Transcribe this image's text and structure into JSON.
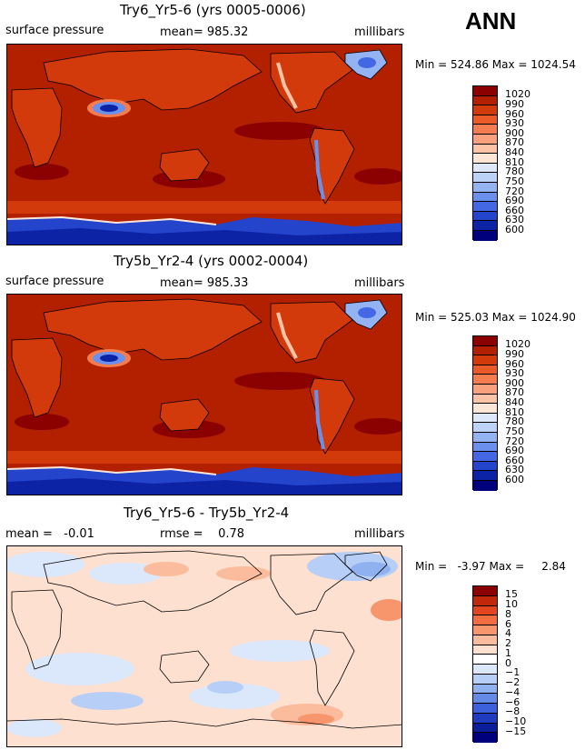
{
  "season": "ANN",
  "panels": [
    {
      "title": "Try6_Yr5-6 (yrs 0005-0006)",
      "left_label": "surface pressure",
      "center_label": "mean= 985.32",
      "right_label": "millibars",
      "minmax": "Min = 524.86 Max = 1024.54",
      "colorbar_ticks": [
        "1020",
        "990",
        "960",
        "930",
        "900",
        "870",
        "840",
        "810",
        "780",
        "750",
        "720",
        "690",
        "660",
        "630",
        "600"
      ]
    },
    {
      "title": "Try5b_Yr2-4 (yrs 0002-0004)",
      "left_label": "surface pressure",
      "center_label": "mean= 985.33",
      "right_label": "millibars",
      "minmax": "Min = 525.03 Max = 1024.90",
      "colorbar_ticks": [
        "1020",
        "990",
        "960",
        "930",
        "900",
        "870",
        "840",
        "810",
        "780",
        "750",
        "720",
        "690",
        "660",
        "630",
        "600"
      ]
    },
    {
      "title": "Try6_Yr5-6 - Try5b_Yr2-4",
      "left_label": "mean =   -0.01",
      "center_label": "rmse =    0.78",
      "right_label": "millibars",
      "minmax": "Min =   -3.97 Max =     2.84",
      "colorbar_ticks": [
        "15",
        "10",
        "8",
        "6",
        "4",
        "2",
        "1",
        "0",
        "−1",
        "−2",
        "−4",
        "−6",
        "−8",
        "−10",
        "−15"
      ]
    }
  ],
  "colors": {
    "abs_scale": [
      "#8b0000",
      "#b22000",
      "#d33a0b",
      "#eb5b2a",
      "#f57c4f",
      "#f9a07c",
      "#fcc3a7",
      "#fde6d6",
      "#dde9fb",
      "#bcd2f7",
      "#93b3f2",
      "#6b8fec",
      "#4468e3",
      "#2544cc",
      "#0d23a6",
      "#00007d"
    ],
    "diff_scale": [
      "#8b0000",
      "#c1270a",
      "#e3461e",
      "#f26d3f",
      "#f7956c",
      "#fbbb9d",
      "#fde0cf",
      "#ffffff",
      "#dbe7fb",
      "#b7cff6",
      "#8fb1f0",
      "#6489e7",
      "#3d60dc",
      "#1f3cc1",
      "#0a1e9c",
      "#00007d"
    ]
  }
}
